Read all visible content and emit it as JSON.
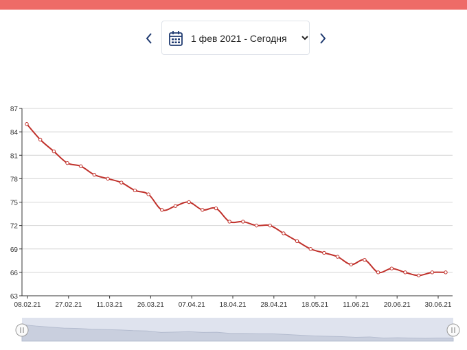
{
  "header": {
    "bar_color": "#ee6b67"
  },
  "date_picker": {
    "prev_icon": "chevron-left-icon",
    "next_icon": "chevron-right-icon",
    "calendar_icon": "calendar-icon",
    "dropdown_icon": "chevron-down-icon",
    "value": "1 фев 2021 - Сегодня"
  },
  "chart_data": {
    "type": "line",
    "line_color": "#c0312b",
    "grid": true,
    "ylim": [
      63,
      87
    ],
    "yticks": [
      87,
      84,
      81,
      78,
      75,
      72,
      69,
      66,
      63
    ],
    "xticks": [
      "08.02.21",
      "27.02.21",
      "11.03.21",
      "26.03.21",
      "07.04.21",
      "18.04.21",
      "28.04.21",
      "18.05.21",
      "11.06.21",
      "20.06.21",
      "30.06.21"
    ],
    "values": [
      85.0,
      83.0,
      81.5,
      80.0,
      79.6,
      78.5,
      78.0,
      77.5,
      76.5,
      76.0,
      74.0,
      74.5,
      75.0,
      74.0,
      74.2,
      72.5,
      72.5,
      72.0,
      72.0,
      71.0,
      70.0,
      69.0,
      68.5,
      68.0,
      67.0,
      67.6,
      66.0,
      66.5,
      66.0,
      65.6,
      66.0,
      66.0
    ],
    "navigator": {
      "handle_icon": "grip-icon"
    }
  }
}
